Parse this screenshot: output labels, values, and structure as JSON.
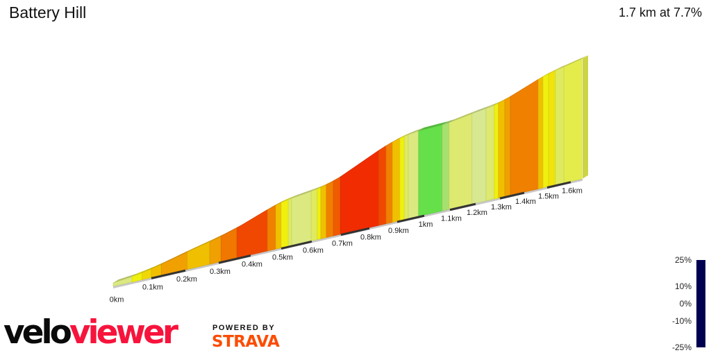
{
  "header": {
    "title": "Battery Hill",
    "summary": "1.7 km at 7.7%"
  },
  "branding": {
    "logo_part1": "velo",
    "logo_part2": "viewer",
    "powered_by": "POWERED BY",
    "strava": "STRAVA"
  },
  "chart_data": {
    "type": "area",
    "title": "",
    "xlabel": "",
    "ylabel": "",
    "x_unit": "km",
    "x_ticks": [
      "0km",
      "0.1km",
      "0.2km",
      "0.3km",
      "0.4km",
      "0.5km",
      "0.6km",
      "0.7km",
      "0.8km",
      "0.9km",
      "1km",
      "1.1km",
      "1.2km",
      "1.3km",
      "1.4km",
      "1.5km",
      "1.6km"
    ],
    "total_distance_km": 1.65,
    "segments": [
      {
        "start": 0.0,
        "end": 0.047,
        "gradient": 5
      },
      {
        "start": 0.047,
        "end": 0.075,
        "gradient": 8
      },
      {
        "start": 0.075,
        "end": 0.1,
        "gradient": 9
      },
      {
        "start": 0.1,
        "end": 0.129,
        "gradient": 10
      },
      {
        "start": 0.129,
        "end": 0.206,
        "gradient": 11
      },
      {
        "start": 0.206,
        "end": 0.273,
        "gradient": 10
      },
      {
        "start": 0.273,
        "end": 0.307,
        "gradient": 11
      },
      {
        "start": 0.307,
        "end": 0.357,
        "gradient": 12.5
      },
      {
        "start": 0.357,
        "end": 0.455,
        "gradient": 15
      },
      {
        "start": 0.455,
        "end": 0.482,
        "gradient": 12
      },
      {
        "start": 0.482,
        "end": 0.5,
        "gradient": 10
      },
      {
        "start": 0.5,
        "end": 0.523,
        "gradient": 8
      },
      {
        "start": 0.523,
        "end": 0.534,
        "gradient": 6
      },
      {
        "start": 0.534,
        "end": 0.598,
        "gradient": 5
      },
      {
        "start": 0.598,
        "end": 0.619,
        "gradient": 6
      },
      {
        "start": 0.619,
        "end": 0.631,
        "gradient": 8
      },
      {
        "start": 0.631,
        "end": 0.65,
        "gradient": 10
      },
      {
        "start": 0.65,
        "end": 0.674,
        "gradient": 12
      },
      {
        "start": 0.674,
        "end": 0.698,
        "gradient": 14
      },
      {
        "start": 0.698,
        "end": 0.833,
        "gradient": 17
      },
      {
        "start": 0.833,
        "end": 0.86,
        "gradient": 15
      },
      {
        "start": 0.86,
        "end": 0.883,
        "gradient": 12
      },
      {
        "start": 0.883,
        "end": 0.91,
        "gradient": 10
      },
      {
        "start": 0.91,
        "end": 0.926,
        "gradient": 8
      },
      {
        "start": 0.926,
        "end": 0.941,
        "gradient": 6
      },
      {
        "start": 0.941,
        "end": 0.979,
        "gradient": 5
      },
      {
        "start": 0.979,
        "end": 1.07,
        "gradient": 1
      },
      {
        "start": 1.07,
        "end": 1.097,
        "gradient": 3
      },
      {
        "start": 1.097,
        "end": 1.186,
        "gradient": 5.5
      },
      {
        "start": 1.186,
        "end": 1.243,
        "gradient": 4.5
      },
      {
        "start": 1.243,
        "end": 1.277,
        "gradient": 5.5
      },
      {
        "start": 1.277,
        "end": 1.294,
        "gradient": 8
      },
      {
        "start": 1.294,
        "end": 1.32,
        "gradient": 10
      },
      {
        "start": 1.32,
        "end": 1.343,
        "gradient": 11
      },
      {
        "start": 1.343,
        "end": 1.461,
        "gradient": 12
      },
      {
        "start": 1.461,
        "end": 1.482,
        "gradient": 10
      },
      {
        "start": 1.482,
        "end": 1.506,
        "gradient": 8
      },
      {
        "start": 1.506,
        "end": 1.535,
        "gradient": 8.5
      },
      {
        "start": 1.535,
        "end": 1.571,
        "gradient": 6
      },
      {
        "start": 1.571,
        "end": 1.647,
        "gradient": 6.5
      }
    ],
    "legend": {
      "labels": [
        {
          "value": 25,
          "text": "25%"
        },
        {
          "value": 10,
          "text": "10%"
        },
        {
          "value": 0,
          "text": "0%"
        },
        {
          "value": -10,
          "text": "-10%"
        },
        {
          "value": -25,
          "text": "-25%"
        }
      ],
      "range": [
        -25,
        25
      ],
      "colormap": [
        [
          -25,
          "#000050"
        ],
        [
          -20,
          "#0000c0"
        ],
        [
          -15,
          "#0040ff"
        ],
        [
          -10,
          "#00e0e0"
        ],
        [
          -5,
          "#40d0c0"
        ],
        [
          -2,
          "#90c0a0"
        ],
        [
          0,
          "#30c030"
        ],
        [
          1,
          "#66e04a"
        ],
        [
          3,
          "#a8e070"
        ],
        [
          4.5,
          "#d8e890"
        ],
        [
          6,
          "#e0ea60"
        ],
        [
          8,
          "#f0f010"
        ],
        [
          10,
          "#f0c000"
        ],
        [
          11,
          "#f0a000"
        ],
        [
          12,
          "#f08000"
        ],
        [
          15,
          "#f04800"
        ],
        [
          17,
          "#f02c00"
        ],
        [
          20,
          "#c00000"
        ],
        [
          25,
          "#500000"
        ]
      ]
    }
  }
}
